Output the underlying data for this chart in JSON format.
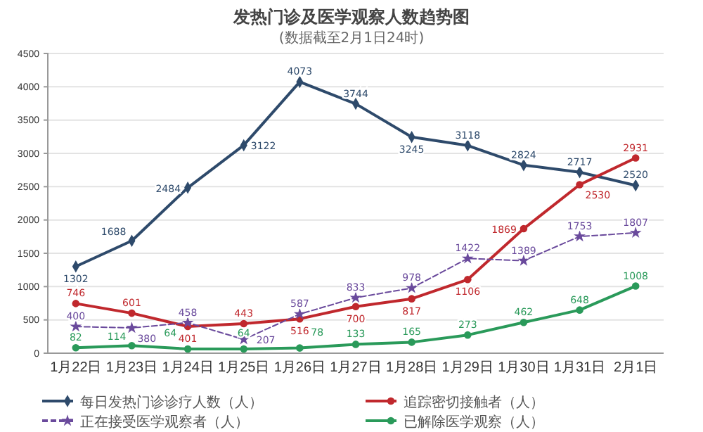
{
  "chart_data": {
    "type": "line",
    "title": "发热门诊及医学观察人数趋势图",
    "subtitle": "(数据截至2月1日24时)",
    "categories": [
      "1月22日",
      "1月23日",
      "1月24日",
      "1月25日",
      "1月26日",
      "1月27日",
      "1月28日",
      "1月29日",
      "1月30日",
      "1月31日",
      "2月1日"
    ],
    "series": [
      {
        "name": "每日发热门诊诊疗人数（人）",
        "color": "#2e4a6b",
        "marker": "diamond",
        "line_style": "solid",
        "values": [
          1302,
          1688,
          2484,
          3122,
          4073,
          3744,
          3245,
          3118,
          2824,
          2717,
          2520
        ]
      },
      {
        "name": "追踪密切接触者（人）",
        "color": "#c0282d",
        "marker": "circle",
        "line_style": "solid",
        "values": [
          746,
          601,
          401,
          443,
          516,
          700,
          817,
          1106,
          1869,
          2530,
          2931
        ]
      },
      {
        "name": "正在接受医学观察者（人）",
        "color": "#6a4a9c",
        "marker": "star",
        "line_style": "dashed",
        "values": [
          400,
          380,
          458,
          207,
          587,
          833,
          978,
          1422,
          1389,
          1753,
          1807
        ]
      },
      {
        "name": "已解除医学观察（人）",
        "color": "#2a9a5a",
        "marker": "circle",
        "line_style": "solid",
        "values": [
          82,
          114,
          64,
          64,
          78,
          133,
          165,
          273,
          462,
          648,
          1008
        ]
      }
    ],
    "ylim": [
      0,
      4500
    ],
    "yticks": [
      0,
      500,
      1000,
      1500,
      2000,
      2500,
      3000,
      3500,
      4000,
      4500
    ],
    "grid": "y",
    "legend": "bottom",
    "data_labels": true
  }
}
